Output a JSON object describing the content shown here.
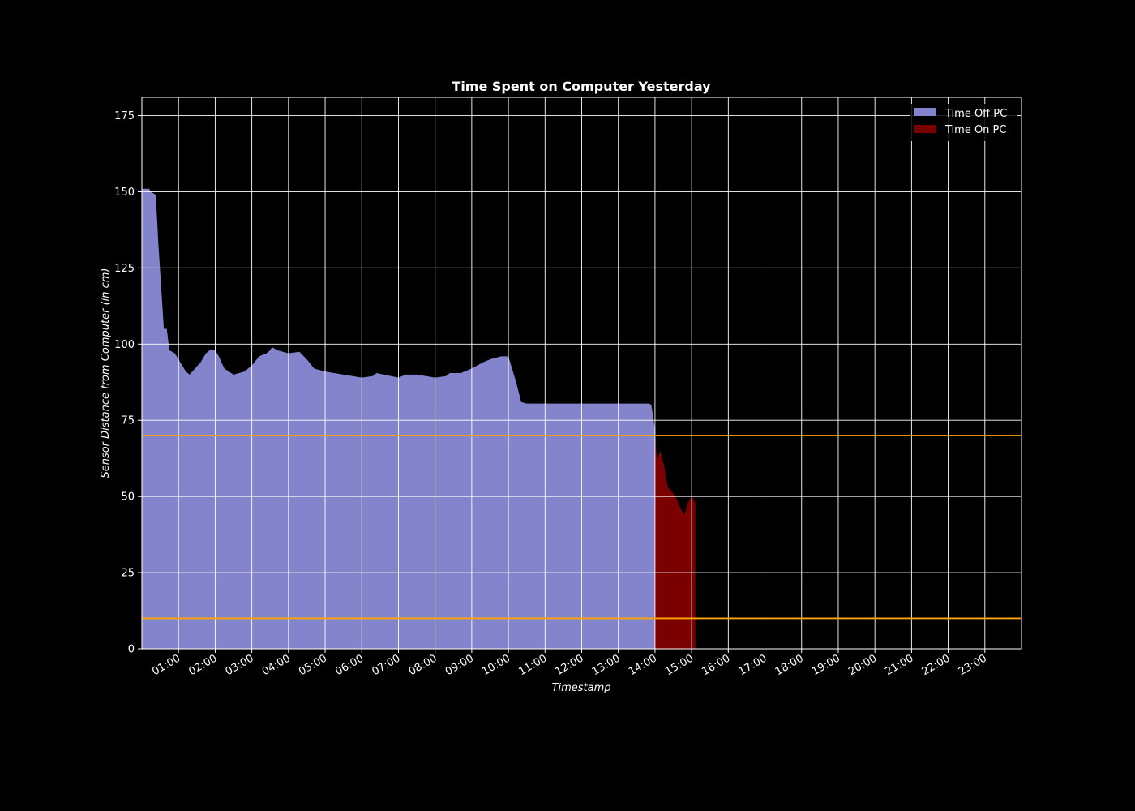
{
  "chart_data": {
    "type": "area",
    "title": "Time Spent on Computer Yesterday",
    "xlabel": "Timestamp",
    "ylabel": "Sensor Distance from Computer (in cm)",
    "xlim": [
      0.0,
      24.0
    ],
    "ylim": [
      0,
      181
    ],
    "yticks": [
      0,
      25,
      50,
      75,
      100,
      125,
      150,
      175
    ],
    "xticks": [
      1,
      2,
      3,
      4,
      5,
      6,
      7,
      8,
      9,
      10,
      11,
      12,
      13,
      14,
      15,
      16,
      17,
      18,
      19,
      20,
      21,
      22,
      23
    ],
    "xtick_labels": [
      "01:00",
      "02:00",
      "03:00",
      "04:00",
      "05:00",
      "06:00",
      "07:00",
      "08:00",
      "09:00",
      "10:00",
      "11:00",
      "12:00",
      "13:00",
      "14:00",
      "15:00",
      "16:00",
      "17:00",
      "18:00",
      "19:00",
      "20:00",
      "21:00",
      "22:00",
      "23:00"
    ],
    "grid": true,
    "legend_position": "top-right",
    "thresholds": [
      70,
      10
    ],
    "threshold_color": "#ffa500",
    "series": [
      {
        "name": "Time Off PC",
        "color": "#8484cc",
        "points": [
          [
            0.0,
            151
          ],
          [
            0.2,
            151
          ],
          [
            0.25,
            150
          ],
          [
            0.38,
            149
          ],
          [
            0.45,
            133
          ],
          [
            0.52,
            120
          ],
          [
            0.6,
            105
          ],
          [
            0.68,
            105
          ],
          [
            0.75,
            98
          ],
          [
            0.9,
            97
          ],
          [
            1.0,
            95
          ],
          [
            1.2,
            91
          ],
          [
            1.3,
            90
          ],
          [
            1.45,
            92
          ],
          [
            1.6,
            94
          ],
          [
            1.75,
            97
          ],
          [
            1.85,
            98
          ],
          [
            2.0,
            98
          ],
          [
            2.1,
            96
          ],
          [
            2.25,
            92
          ],
          [
            2.5,
            90
          ],
          [
            2.8,
            91
          ],
          [
            3.0,
            93
          ],
          [
            3.2,
            96
          ],
          [
            3.4,
            97
          ],
          [
            3.5,
            98
          ],
          [
            3.55,
            99
          ],
          [
            3.7,
            98
          ],
          [
            4.0,
            97
          ],
          [
            4.3,
            97.5
          ],
          [
            4.5,
            95
          ],
          [
            4.7,
            92
          ],
          [
            5.0,
            91
          ],
          [
            5.5,
            90
          ],
          [
            6.0,
            89
          ],
          [
            6.3,
            89.5
          ],
          [
            6.4,
            90.5
          ],
          [
            6.6,
            90
          ],
          [
            7.0,
            89
          ],
          [
            7.2,
            90
          ],
          [
            7.5,
            90
          ],
          [
            8.0,
            89
          ],
          [
            8.3,
            89.5
          ],
          [
            8.4,
            90.5
          ],
          [
            8.7,
            90.5
          ],
          [
            9.0,
            92
          ],
          [
            9.3,
            94
          ],
          [
            9.5,
            95
          ],
          [
            9.8,
            96
          ],
          [
            10.0,
            96
          ],
          [
            10.2,
            88
          ],
          [
            10.35,
            81
          ],
          [
            10.5,
            80.5
          ],
          [
            11.0,
            80.5
          ],
          [
            11.5,
            80.5
          ],
          [
            12.0,
            80.5
          ],
          [
            12.5,
            80.5
          ],
          [
            13.0,
            80.5
          ],
          [
            13.5,
            80.5
          ],
          [
            13.85,
            80.5
          ],
          [
            13.9,
            80
          ],
          [
            14.0,
            72
          ]
        ]
      },
      {
        "name": "Time On PC",
        "color": "#7b0000",
        "points": [
          [
            14.0,
            72
          ],
          [
            14.05,
            62
          ],
          [
            14.15,
            65
          ],
          [
            14.25,
            60
          ],
          [
            14.35,
            53
          ],
          [
            14.5,
            51
          ],
          [
            14.6,
            49
          ],
          [
            14.7,
            46
          ],
          [
            14.8,
            44
          ],
          [
            14.9,
            48
          ],
          [
            15.0,
            50
          ],
          [
            15.1,
            48
          ]
        ]
      }
    ]
  }
}
